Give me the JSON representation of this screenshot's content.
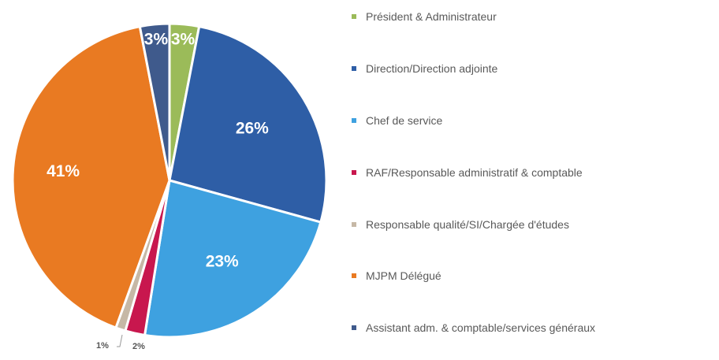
{
  "chart_data": {
    "type": "pie",
    "title": "",
    "slices": [
      {
        "label": "Président & Administrateur",
        "value": 3,
        "display": "3%",
        "color": "#9bbb59"
      },
      {
        "label": "Direction/Direction adjointe",
        "value": 26,
        "display": "26%",
        "color": "#2e5ea6"
      },
      {
        "label": "Chef de service",
        "value": 23,
        "display": "23%",
        "color": "#3ea1e0"
      },
      {
        "label": "RAF/Responsable administratif & comptable",
        "value": 2,
        "display": "2%",
        "color": "#c8174e"
      },
      {
        "label": "Responsable qualité/SI/Chargée d'études",
        "value": 1,
        "display": "1%",
        "color": "#c6b8a6"
      },
      {
        "label": "MJPM Délégué",
        "value": 41,
        "display": "41%",
        "color": "#e97a22"
      },
      {
        "label": "Assistant adm. & comptable/services généraux",
        "value": 3,
        "display": "3%",
        "color": "#3f5a8c"
      }
    ],
    "legend_position": "right"
  }
}
